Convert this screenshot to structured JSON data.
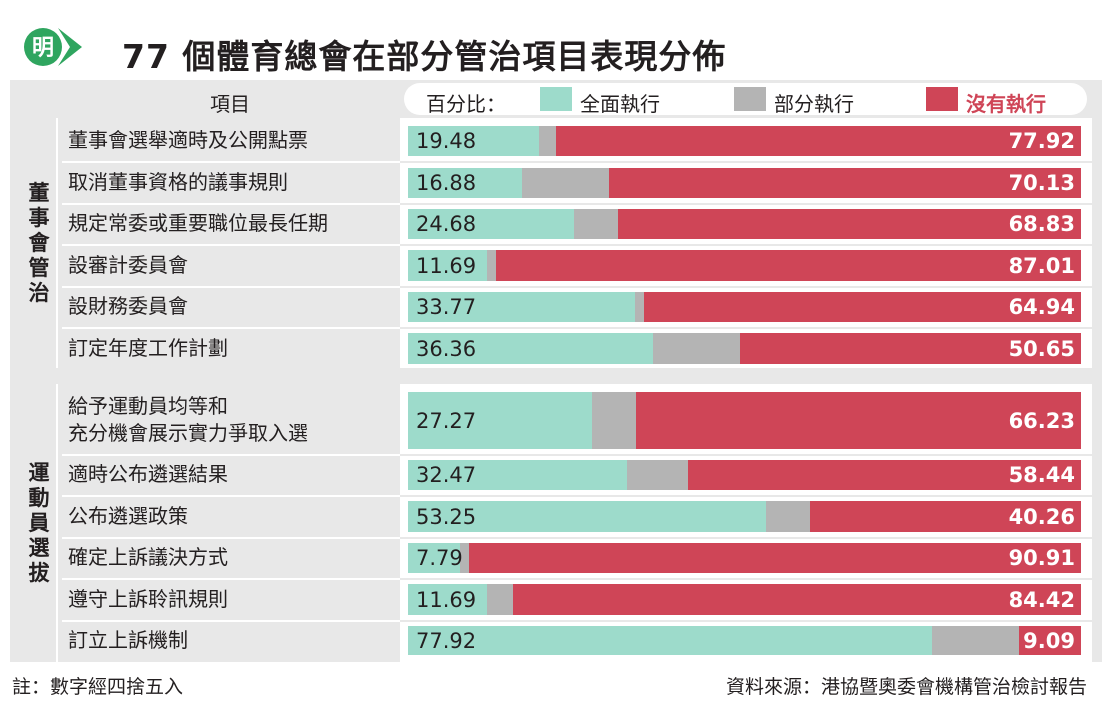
{
  "header": {
    "title": "77 個體育總會在部分管治項目表現分佈",
    "logo_text": "明",
    "item_header": "項目"
  },
  "legend": {
    "prefix": "百分比：",
    "full": "全面執行",
    "partial": "部分執行",
    "none": "沒有執行"
  },
  "colors": {
    "full": "#9ddbcb",
    "partial": "#b4b4b4",
    "none": "#cf4557",
    "logo": "#2fa55f"
  },
  "chart_data": {
    "type": "bar",
    "stacked": true,
    "orientation": "horizontal",
    "title": "77 個體育總會在部分管治項目表現分佈",
    "unit": "百分比",
    "groups": [
      {
        "name": "董事會管治",
        "items": [
          {
            "label": "董事會選舉適時及公開點票",
            "full": 19.48,
            "partial": 2.6,
            "none": 77.92
          },
          {
            "label": "取消董事資格的議事規則",
            "full": 16.88,
            "partial": 12.99,
            "none": 70.13
          },
          {
            "label": "規定常委或重要職位最長任期",
            "full": 24.68,
            "partial": 6.49,
            "none": 68.83
          },
          {
            "label": "設審計委員會",
            "full": 11.69,
            "partial": 1.3,
            "none": 87.01
          },
          {
            "label": "設財務委員會",
            "full": 33.77,
            "partial": 1.3,
            "none": 64.94
          },
          {
            "label": "訂定年度工作計劃",
            "full": 36.36,
            "partial": 12.99,
            "none": 50.65
          }
        ]
      },
      {
        "name": "運動員選拔",
        "items": [
          {
            "label": "給予運動員均等和\n充分機會展示實力爭取入選",
            "full": 27.27,
            "partial": 6.5,
            "none": 66.23
          },
          {
            "label": "適時公布遴選結果",
            "full": 32.47,
            "partial": 9.09,
            "none": 58.44
          },
          {
            "label": "公布遴選政策",
            "full": 53.25,
            "partial": 6.49,
            "none": 40.26
          },
          {
            "label": "確定上訴議決方式",
            "full": 7.79,
            "partial": 1.3,
            "none": 90.91
          },
          {
            "label": "遵守上訴聆訊規則",
            "full": 11.69,
            "partial": 3.89,
            "none": 84.42
          },
          {
            "label": "訂立上訴機制",
            "full": 77.92,
            "partial": 12.99,
            "none": 9.09
          }
        ]
      }
    ],
    "series": [
      {
        "name": "全面執行",
        "key": "full"
      },
      {
        "name": "部分執行",
        "key": "partial"
      },
      {
        "name": "沒有執行",
        "key": "none"
      }
    ]
  },
  "footer": {
    "note": "註：數字經四捨五入",
    "source": "資料來源：港協暨奧委會機構管治檢討報告"
  }
}
